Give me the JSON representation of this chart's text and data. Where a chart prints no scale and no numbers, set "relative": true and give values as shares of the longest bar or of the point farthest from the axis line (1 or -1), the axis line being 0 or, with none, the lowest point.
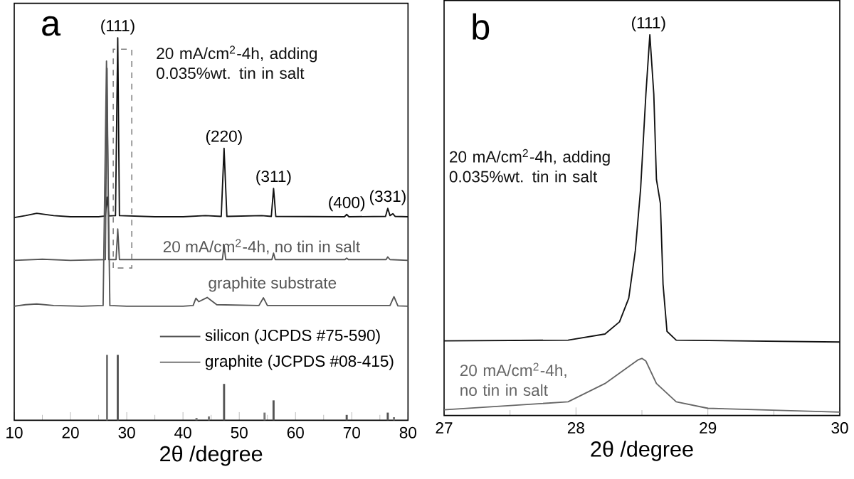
{
  "chart_data": [
    {
      "type": "line",
      "title": "a",
      "xlabel": "2θ /degree",
      "relative": true,
      "xlim": [
        10,
        80
      ],
      "xticks": [
        10,
        20,
        30,
        40,
        50,
        60,
        70,
        80
      ],
      "legend": "right",
      "series": [
        {
          "name": "20 mA/cm$^{2}$-4h, adding 0.035%wt. tin in salt",
          "color": "#111111",
          "x": [
            10,
            12,
            14,
            17,
            20,
            25,
            26.2,
            26.5,
            26.8,
            28.0,
            28.4,
            28.7,
            35,
            40,
            44,
            46.8,
            47.3,
            47.8,
            54,
            55.7,
            56.1,
            56.5,
            68.7,
            69.1,
            69.5,
            76,
            76.4,
            76.8,
            77.3,
            77.7,
            80
          ],
          "values": [
            0.53,
            0.535,
            0.541,
            0.535,
            0.532,
            0.532,
            0.534,
            0.583,
            0.534,
            0.535,
            1.0,
            0.535,
            0.532,
            0.532,
            0.535,
            0.533,
            0.711,
            0.533,
            0.535,
            0.533,
            0.606,
            0.533,
            0.532,
            0.538,
            0.532,
            0.533,
            0.554,
            0.535,
            0.54,
            0.533,
            0.532
          ]
        },
        {
          "name": "20 mA/cm$^{2}$-4h, no tin in salt",
          "color": "#555555",
          "x": [
            10,
            15,
            20,
            26.2,
            26.5,
            26.8,
            28.1,
            28.4,
            28.7,
            47.0,
            47.3,
            47.6,
            55.8,
            56.1,
            56.4,
            68.8,
            69.1,
            69.4,
            76.1,
            76.4,
            76.8,
            80
          ],
          "values": [
            0.418,
            0.421,
            0.418,
            0.42,
            0.92,
            0.42,
            0.42,
            0.5,
            0.42,
            0.42,
            0.458,
            0.42,
            0.42,
            0.437,
            0.42,
            0.42,
            0.424,
            0.42,
            0.42,
            0.427,
            0.42,
            0.418
          ]
        },
        {
          "name": "graphite substrate",
          "color": "#555555",
          "x": [
            10,
            12,
            14,
            17,
            22,
            25.8,
            26.4,
            27.0,
            30,
            40,
            41.8,
            42.3,
            42.8,
            44.3,
            46,
            53.5,
            54.3,
            55,
            76.8,
            77.5,
            78.2,
            80
          ],
          "values": [
            0.298,
            0.302,
            0.304,
            0.3,
            0.298,
            0.3,
            0.939,
            0.3,
            0.298,
            0.298,
            0.3,
            0.319,
            0.31,
            0.321,
            0.302,
            0.3,
            0.32,
            0.3,
            0.3,
            0.323,
            0.299,
            0.298
          ]
        },
        {
          "name": "silicon (JCPDS #75-590)",
          "type": "bar",
          "color": "#555555",
          "x": [
            28.4,
            47.3,
            56.1,
            69.1,
            76.4
          ],
          "values": [
            0.171,
            0.095,
            0.052,
            0.014,
            0.02
          ]
        },
        {
          "name": "graphite (JCPDS #08-415)",
          "type": "bar",
          "color": "#777777",
          "x": [
            26.5,
            42.4,
            44.6,
            54.5,
            77.5
          ],
          "values": [
            0.171,
            0.006,
            0.01,
            0.02,
            0.008
          ]
        }
      ],
      "annotations": [
        {
          "text": "(111)",
          "x": 28.4,
          "y": 1.0
        },
        {
          "text": "(220)",
          "x": 47.3,
          "y": 0.711
        },
        {
          "text": "(311)",
          "x": 56.1,
          "y": 0.606
        },
        {
          "text": "(400)",
          "x": 69.1,
          "y": 0.538
        },
        {
          "text": "(331)",
          "x": 76.4,
          "y": 0.554
        }
      ]
    },
    {
      "type": "line",
      "title": "b",
      "xlabel": "2θ /degree",
      "relative": true,
      "xlim": [
        27,
        30
      ],
      "xticks": [
        27,
        28,
        29,
        30
      ],
      "series": [
        {
          "name": "20 mA/cm$^{2}$-4h, adding 0.035%wt. tin in salt",
          "color": "#111111",
          "x": [
            27.0,
            27.94,
            28.22,
            28.33,
            28.4,
            28.45,
            28.49,
            28.53,
            28.56,
            28.59,
            28.61,
            28.64,
            28.66,
            28.69,
            28.76,
            30.0
          ],
          "values": [
            0.196,
            0.198,
            0.214,
            0.246,
            0.308,
            0.433,
            0.595,
            0.844,
            1.0,
            0.844,
            0.62,
            0.557,
            0.345,
            0.221,
            0.198,
            0.193
          ]
        },
        {
          "name": "20 mA/cm$^{2}$-4h, no tin in salt",
          "color": "#666666",
          "x": [
            27.0,
            27.94,
            28.22,
            28.37,
            28.47,
            28.5,
            28.53,
            28.61,
            28.76,
            29.0,
            30.0
          ],
          "values": [
            0.015,
            0.036,
            0.084,
            0.121,
            0.146,
            0.15,
            0.143,
            0.084,
            0.036,
            0.019,
            0.009
          ]
        }
      ],
      "annotations": [
        {
          "text": "(111)",
          "x": 28.55,
          "y": 1.0
        }
      ]
    }
  ]
}
